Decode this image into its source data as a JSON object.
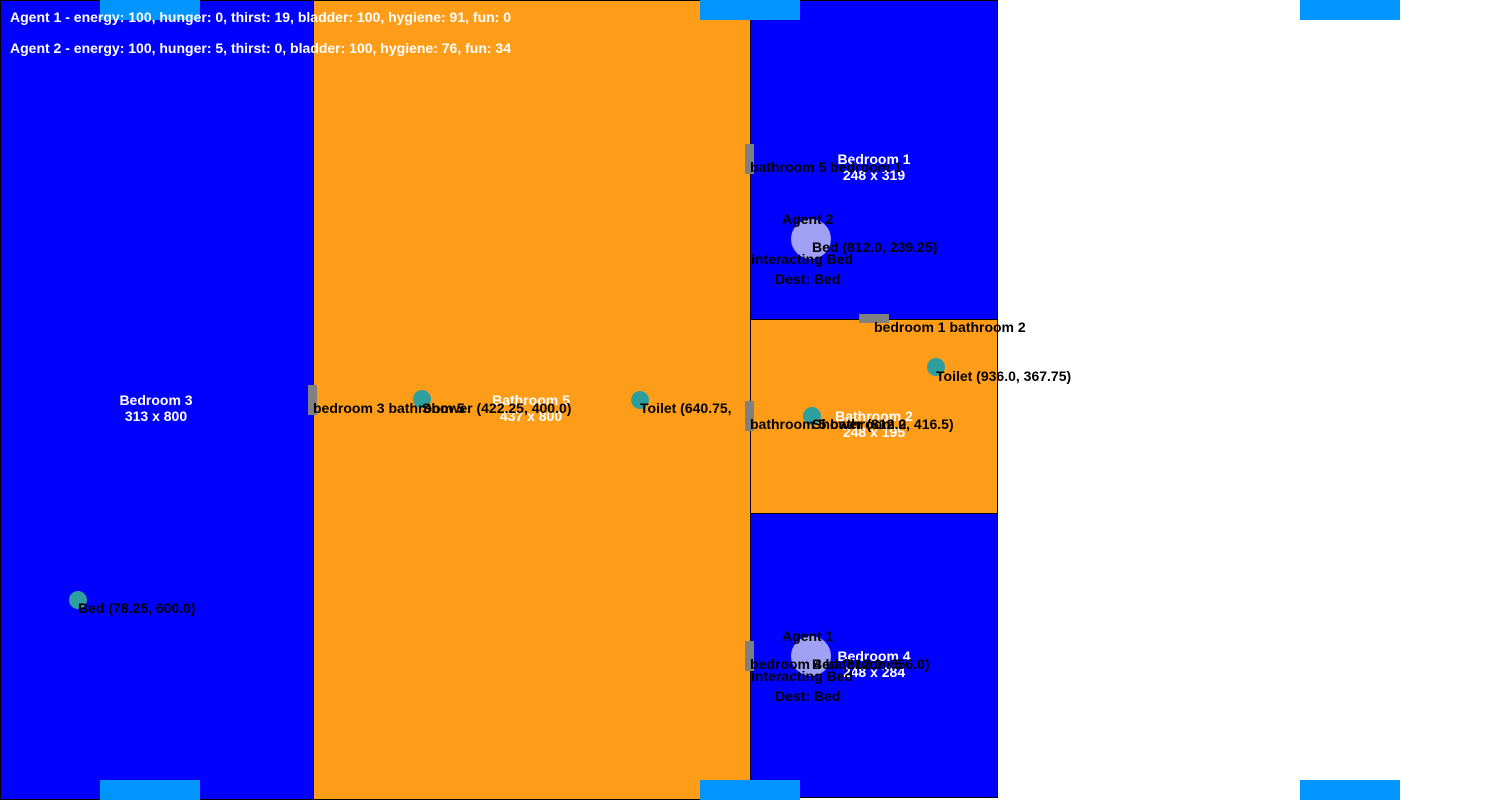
{
  "rooms": {
    "bedroom3": {
      "name": "Bedroom 3",
      "size": "313 x 800"
    },
    "bathroom5": {
      "name": "Bathroom 5",
      "size": "437 x 800"
    },
    "bedroom1": {
      "name": "Bedroom 1",
      "size": "248 x 319"
    },
    "bathroom2": {
      "name": "Bathroom 2",
      "size": "248 x 195"
    },
    "bedroom4": {
      "name": "Bedroom 4",
      "size": "248 x 284"
    }
  },
  "doors": {
    "bedroom3_bathroom5": "bedroom 3 bathroom 5",
    "bathroom5_bedroom1": "bathroom 5 bedroom 1",
    "bedroom1_bathroom2": "bedroom 1 bathroom 2",
    "bathroom5_bathroom2": "bathroom 5 bathroom 2",
    "bedroom4_bathroom5": "bedroom 4 bathroom 5"
  },
  "objects": {
    "bed3": "Bed (78.25, 600.0)",
    "shower5": "Shower (422.25, 400.0)",
    "toilet5": "Toilet (640.75,",
    "bed1": "Bed (812.0, 239.25)",
    "toilet2": "Toilet (936.0, 367.75)",
    "shower2": "Shower (812.0, 416.5)",
    "bed4": "Bed (812.0, 656.0)"
  },
  "agents": {
    "agent1": {
      "name": "Agent 1",
      "status": "interacting Bed",
      "dest": "Dest: Bed"
    },
    "agent2": {
      "name": "Agent 2",
      "status": "interacting Bed",
      "dest": "Dest: Bed"
    }
  },
  "stats": {
    "agent1": "Agent 1 - energy: 100, hunger: 0, thirst: 19, bladder: 100, hygiene: 91, fun: 0",
    "agent2": "Agent 2 - energy: 100, hunger: 5, thirst: 0, bladder: 100, hygiene: 76, fun: 34"
  },
  "colors": {
    "bedroom": "#0000ff",
    "bathroom": "#ff9d18",
    "tile": "#0095ff",
    "object": "#2f9e9e",
    "agent": "#a0a0f5",
    "door": "#808080"
  }
}
